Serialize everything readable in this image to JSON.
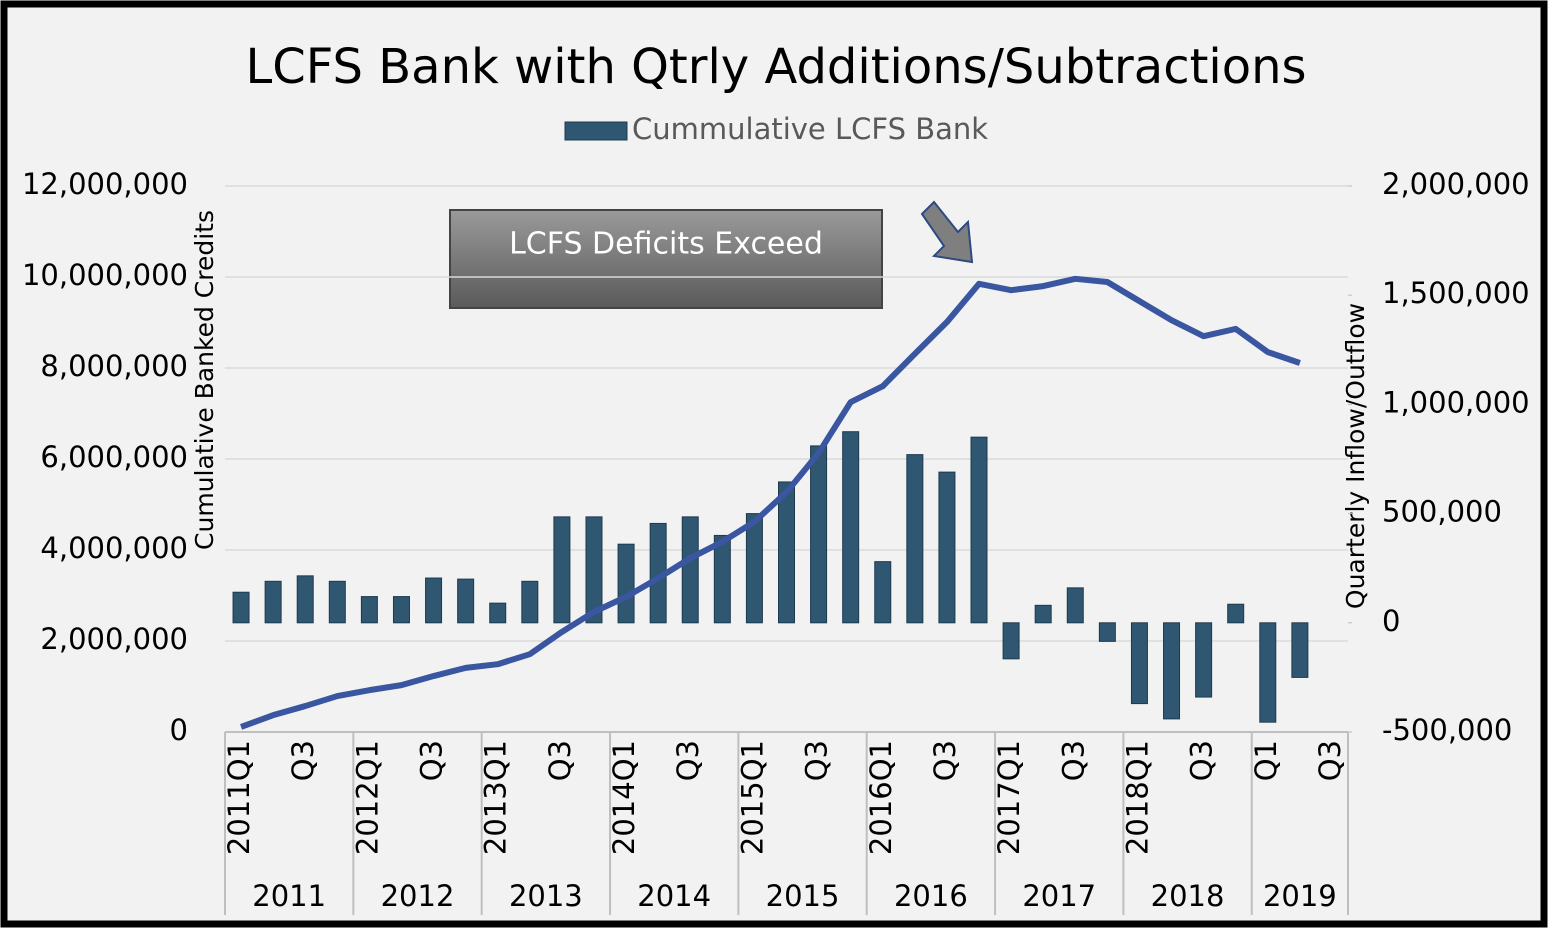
{
  "chart_data": {
    "type": "bar-line",
    "title": "LCFS Bank  with Qtrly Additions/Subtractions",
    "y_label": "Cumulative Banked Credits",
    "y2_label": "Quarterly Inflow/Outflow",
    "annotation": "LCFS Deficits Exceed",
    "categories": [
      "2011Q1",
      null,
      "Q3",
      null,
      "2012Q1",
      null,
      "Q3",
      null,
      "2013Q1",
      null,
      "Q3",
      null,
      "2014Q1",
      null,
      "Q3",
      null,
      "2015Q1",
      null,
      "Q3",
      null,
      "2016Q1",
      null,
      "Q3",
      null,
      "2017Q1",
      null,
      "Q3",
      null,
      "2018Q1",
      null,
      "Q3",
      null,
      "Q1",
      null,
      "Q3"
    ],
    "years": [
      "2011",
      "2012",
      "2013",
      "2014",
      "2015",
      "2016",
      "2017",
      "2018",
      "2019"
    ],
    "series": [
      {
        "name": "Cummulative LCFS Bank",
        "type": "bar",
        "axis": "y2",
        "color": "#2f5772",
        "values": [
          140000,
          190000,
          215000,
          190000,
          120000,
          120000,
          205000,
          200000,
          90000,
          190000,
          485000,
          485000,
          360000,
          455000,
          485000,
          400000,
          500000,
          645000,
          810000,
          875000,
          280000,
          770000,
          690000,
          850000,
          -165000,
          80000,
          160000,
          -85000,
          -370000,
          -440000,
          -340000,
          85000,
          -455000,
          -250000,
          null
        ]
      },
      {
        "type": "line",
        "axis": "y",
        "color": "#3a56a0",
        "values": [
          110000,
          370000,
          570000,
          790000,
          920000,
          1030000,
          1230000,
          1410000,
          1490000,
          1710000,
          2200000,
          2640000,
          2970000,
          3380000,
          3820000,
          4180000,
          4620000,
          5270000,
          6130000,
          7250000,
          7600000,
          8310000,
          9010000,
          9850000,
          9710000,
          9800000,
          9960000,
          9890000,
          9470000,
          9050000,
          8700000,
          8860000,
          8350000,
          8110000,
          null
        ]
      }
    ],
    "ylim": [
      0,
      12000000
    ],
    "yticks": [
      0,
      {
        "value": 2000000,
        "label": "2,000,000"
      },
      {
        "value": 4000000,
        "label": "4,000,000"
      },
      {
        "value": 6000000,
        "label": "6,000,000"
      },
      {
        "value": 8000000,
        "label": "8,000,000"
      },
      {
        "value": 10000000,
        "label": "10,000,000"
      },
      {
        "value": 12000000,
        "label": "12,000,000"
      }
    ],
    "y2lim": [
      -500000,
      2000000
    ],
    "y2ticks": [
      {
        "value": -500000,
        "label": "-500,000"
      },
      0,
      {
        "value": 500000,
        "label": "500,000"
      },
      {
        "value": 1000000,
        "label": "1,000,000"
      },
      {
        "value": 1500000,
        "label": "1,500,000"
      },
      {
        "value": 2000000,
        "label": "2,000,000"
      }
    ],
    "grid": true,
    "legend": "top"
  }
}
